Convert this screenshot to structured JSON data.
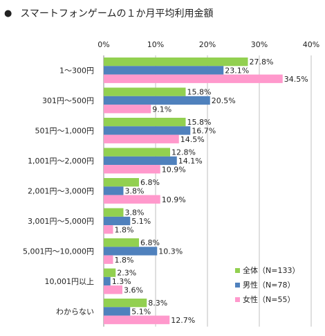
{
  "title": {
    "bullet": "●",
    "text": "スマートフォンゲームの１か月平均利用金額"
  },
  "chart_data": {
    "type": "bar",
    "orientation": "horizontal",
    "categories": [
      "1～300円",
      "301円～500円",
      "501円～1,000円",
      "1,001円～2,000円",
      "2,001円～3,000円",
      "3,001円～5,000円",
      "5,001円～10,000円",
      "10,001円以上",
      "わからない"
    ],
    "series": [
      {
        "name": "全体（N=133）",
        "color": "#92d050",
        "values": [
          27.8,
          15.8,
          15.8,
          12.8,
          6.8,
          3.8,
          6.8,
          2.3,
          8.3
        ]
      },
      {
        "name": "男性（N=78）",
        "color": "#4f81bd",
        "values": [
          23.1,
          20.5,
          16.7,
          14.1,
          3.8,
          5.1,
          10.3,
          1.3,
          5.1
        ]
      },
      {
        "name": "女性（N=55）",
        "color": "#ff99cc",
        "values": [
          34.5,
          9.1,
          14.5,
          10.9,
          10.9,
          1.8,
          1.8,
          3.6,
          12.7
        ]
      }
    ],
    "xlim": [
      0,
      40
    ],
    "xticks": [
      "0%",
      "10%",
      "20%",
      "30%",
      "40%"
    ],
    "value_suffix": "%",
    "grid": true,
    "legend_position": "bottom-right"
  }
}
